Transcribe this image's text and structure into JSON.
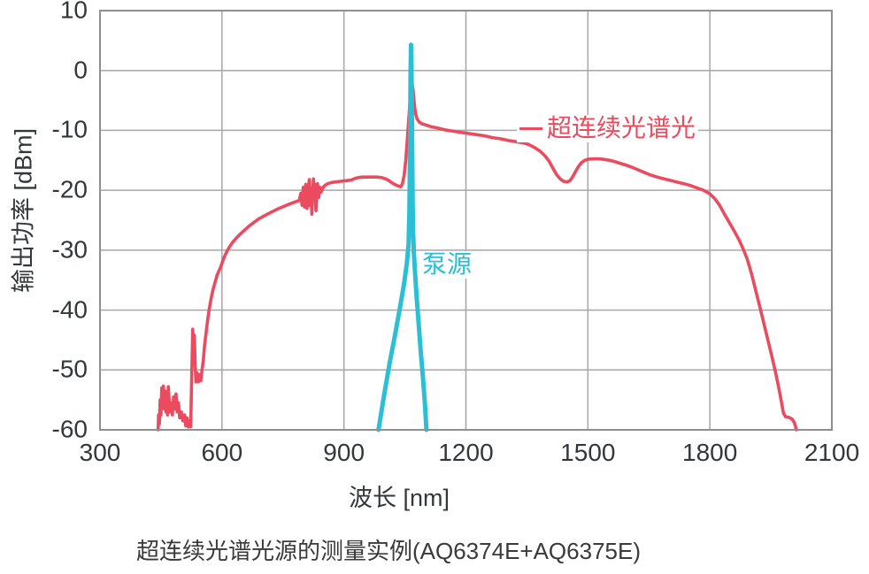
{
  "figure": {
    "caption": "超连续光谱光源的测量实例(AQ6374E+AQ6375E)"
  },
  "chart_data": {
    "type": "line",
    "title": "",
    "xlabel": "波长 [nm]",
    "ylabel": "输出功率 [dBm]",
    "xlim": [
      300,
      2100
    ],
    "ylim": [
      -60,
      10
    ],
    "xticks": [
      300,
      600,
      900,
      1200,
      1500,
      1800,
      2100
    ],
    "yticks": [
      10,
      0,
      -10,
      -20,
      -30,
      -40,
      -50,
      -60
    ],
    "grid": true,
    "grid_color": "#a6a6a6",
    "frame_color": "#8f8f8f",
    "legend_position": "inline-annotations",
    "annotations": [
      {
        "id": "supercontinuum",
        "text": "超连续光谱光",
        "color": "#ea4b5e",
        "x": 1400,
        "y": -9.5,
        "leader_dash": true
      },
      {
        "id": "pump",
        "text": "泵源",
        "color": "#2bbfd5",
        "x": 1095,
        "y": -31,
        "leader_dash": false
      }
    ],
    "series": [
      {
        "name": "超连续光谱光",
        "color": "#ea4b5e",
        "stroke_width": 3.6,
        "points": [
          [
            443,
            -60
          ],
          [
            444,
            -57.5
          ],
          [
            446,
            -59
          ],
          [
            448,
            -55
          ],
          [
            450,
            -57.5
          ],
          [
            452,
            -53
          ],
          [
            454,
            -56
          ],
          [
            456,
            -52.7
          ],
          [
            458,
            -56.5
          ],
          [
            460,
            -53.5
          ],
          [
            462,
            -57
          ],
          [
            464,
            -54.5
          ],
          [
            466,
            -57.5
          ],
          [
            468,
            -52.8
          ],
          [
            470,
            -55
          ],
          [
            472,
            -57
          ],
          [
            475,
            -55.5
          ],
          [
            478,
            -57.5
          ],
          [
            481,
            -54.5
          ],
          [
            484,
            -56.5
          ],
          [
            487,
            -54
          ],
          [
            490,
            -57
          ],
          [
            493,
            -55.5
          ],
          [
            496,
            -58
          ],
          [
            500,
            -57
          ],
          [
            504,
            -58.5
          ],
          [
            508,
            -57.5
          ],
          [
            511,
            -59.3
          ],
          [
            514,
            -58
          ],
          [
            517,
            -59.5
          ],
          [
            520,
            -58.5
          ],
          [
            523,
            -59.5
          ],
          [
            526,
            -50
          ],
          [
            528,
            -43.2
          ],
          [
            530,
            -46
          ],
          [
            532,
            -44.2
          ],
          [
            534,
            -49
          ],
          [
            536,
            -52
          ],
          [
            539,
            -50.5
          ],
          [
            542,
            -52
          ],
          [
            545,
            -50.8
          ],
          [
            548,
            -51.8
          ],
          [
            551,
            -50
          ],
          [
            554,
            -48.5
          ],
          [
            557,
            -46
          ],
          [
            561,
            -43.8
          ],
          [
            565,
            -41.5
          ],
          [
            569,
            -39.7
          ],
          [
            573,
            -38.2
          ],
          [
            578,
            -36.6
          ],
          [
            583,
            -35.4
          ],
          [
            588,
            -34.2
          ],
          [
            592,
            -33.5
          ],
          [
            597,
            -32.8
          ],
          [
            603,
            -31.6
          ],
          [
            610,
            -30.5
          ],
          [
            618,
            -29.5
          ],
          [
            626,
            -28.7
          ],
          [
            635,
            -28
          ],
          [
            645,
            -27.3
          ],
          [
            655,
            -26.7
          ],
          [
            666,
            -26
          ],
          [
            678,
            -25.4
          ],
          [
            690,
            -24.8
          ],
          [
            702,
            -24.35
          ],
          [
            714,
            -23.9
          ],
          [
            726,
            -23.5
          ],
          [
            738,
            -23.1
          ],
          [
            750,
            -22.75
          ],
          [
            762,
            -22.4
          ],
          [
            772,
            -22.15
          ],
          [
            782,
            -21.9
          ],
          [
            790,
            -21.7
          ],
          [
            794,
            -20.5
          ],
          [
            797,
            -22.5
          ],
          [
            800,
            -19.5
          ],
          [
            803,
            -22.8
          ],
          [
            806,
            -19
          ],
          [
            809,
            -23
          ],
          [
            812,
            -19.8
          ],
          [
            815,
            -18.2
          ],
          [
            817,
            -22.6
          ],
          [
            819,
            -19.6
          ],
          [
            821,
            -24
          ],
          [
            823,
            -20.5
          ],
          [
            825,
            -18.1
          ],
          [
            827,
            -21.5
          ],
          [
            829,
            -19
          ],
          [
            831,
            -23.4
          ],
          [
            833,
            -20.9
          ],
          [
            835,
            -18.9
          ],
          [
            838,
            -21.2
          ],
          [
            841,
            -19.5
          ],
          [
            844,
            -20.3
          ],
          [
            848,
            -19.6
          ],
          [
            853,
            -19.2
          ],
          [
            860,
            -18.9
          ],
          [
            870,
            -18.7
          ],
          [
            880,
            -18.6
          ],
          [
            892,
            -18.5
          ],
          [
            905,
            -18.4
          ],
          [
            918,
            -18.3
          ],
          [
            928,
            -18
          ],
          [
            935,
            -17.9
          ],
          [
            945,
            -17.8
          ],
          [
            958,
            -17.8
          ],
          [
            970,
            -17.8
          ],
          [
            982,
            -17.8
          ],
          [
            994,
            -17.9
          ],
          [
            1003,
            -18.1
          ],
          [
            1011,
            -18.4
          ],
          [
            1019,
            -18.8
          ],
          [
            1027,
            -19.1
          ],
          [
            1034,
            -19.3
          ],
          [
            1040,
            -19.4
          ],
          [
            1044,
            -18.9
          ],
          [
            1048,
            -17.5
          ],
          [
            1052,
            -15
          ],
          [
            1056,
            -11.5
          ],
          [
            1060,
            -7.5
          ],
          [
            1064,
            -4
          ],
          [
            1068,
            -2.4
          ],
          [
            1070,
            -3.2
          ],
          [
            1072,
            -4.8
          ],
          [
            1074,
            -6.2
          ],
          [
            1077,
            -7.4
          ],
          [
            1080,
            -8.1
          ],
          [
            1085,
            -8.6
          ],
          [
            1092,
            -8.9
          ],
          [
            1102,
            -9.1
          ],
          [
            1115,
            -9.4
          ],
          [
            1130,
            -9.6
          ],
          [
            1148,
            -9.9
          ],
          [
            1166,
            -10.1
          ],
          [
            1185,
            -10.3
          ],
          [
            1205,
            -10.5
          ],
          [
            1225,
            -10.7
          ],
          [
            1245,
            -10.9
          ],
          [
            1265,
            -11.2
          ],
          [
            1285,
            -11.4
          ],
          [
            1305,
            -11.7
          ],
          [
            1325,
            -11.9
          ],
          [
            1342,
            -12.1
          ],
          [
            1356,
            -12.4
          ],
          [
            1370,
            -12.9
          ],
          [
            1383,
            -13.5
          ],
          [
            1395,
            -14.3
          ],
          [
            1405,
            -15.2
          ],
          [
            1414,
            -16.3
          ],
          [
            1423,
            -17.4
          ],
          [
            1432,
            -18.1
          ],
          [
            1440,
            -18.5
          ],
          [
            1449,
            -18.6
          ],
          [
            1456,
            -18.4
          ],
          [
            1463,
            -17.7
          ],
          [
            1470,
            -16.8
          ],
          [
            1477,
            -16
          ],
          [
            1484,
            -15.4
          ],
          [
            1492,
            -15
          ],
          [
            1502,
            -14.8
          ],
          [
            1515,
            -14.75
          ],
          [
            1528,
            -14.75
          ],
          [
            1541,
            -14.85
          ],
          [
            1554,
            -15
          ],
          [
            1568,
            -15.25
          ],
          [
            1582,
            -15.55
          ],
          [
            1596,
            -15.85
          ],
          [
            1610,
            -16.2
          ],
          [
            1624,
            -16.6
          ],
          [
            1638,
            -17
          ],
          [
            1652,
            -17.4
          ],
          [
            1666,
            -17.7
          ],
          [
            1682,
            -18
          ],
          [
            1700,
            -18.3
          ],
          [
            1718,
            -18.6
          ],
          [
            1736,
            -18.9
          ],
          [
            1752,
            -19.2
          ],
          [
            1768,
            -19.6
          ],
          [
            1784,
            -20
          ],
          [
            1800,
            -20.6
          ],
          [
            1812,
            -21.4
          ],
          [
            1824,
            -22.5
          ],
          [
            1836,
            -24
          ],
          [
            1848,
            -25.4
          ],
          [
            1860,
            -26.8
          ],
          [
            1872,
            -28.3
          ],
          [
            1882,
            -29.8
          ],
          [
            1892,
            -31.5
          ],
          [
            1902,
            -33.8
          ],
          [
            1912,
            -36.5
          ],
          [
            1922,
            -39.2
          ],
          [
            1932,
            -42
          ],
          [
            1942,
            -44.8
          ],
          [
            1952,
            -47.6
          ],
          [
            1961,
            -50.2
          ],
          [
            1969,
            -52.8
          ],
          [
            1976,
            -55.3
          ],
          [
            1981,
            -57.2
          ],
          [
            1986,
            -57.8
          ],
          [
            1994,
            -57.9
          ],
          [
            2002,
            -58.2
          ],
          [
            2008,
            -58.8
          ],
          [
            2013,
            -60
          ]
        ]
      },
      {
        "name": "泵源",
        "color": "#2bbfd5",
        "stroke_width": 5,
        "points": [
          [
            985,
            -60
          ],
          [
            998,
            -54.5
          ],
          [
            1012,
            -49
          ],
          [
            1026,
            -44
          ],
          [
            1038,
            -39.5
          ],
          [
            1048,
            -35.5
          ],
          [
            1055,
            -32
          ],
          [
            1059,
            -29
          ],
          [
            1061,
            -24
          ],
          [
            1062,
            -17
          ],
          [
            1063,
            -8
          ],
          [
            1064,
            0
          ],
          [
            1065,
            4.3
          ],
          [
            1066,
            2
          ],
          [
            1067,
            -7
          ],
          [
            1068,
            -15
          ],
          [
            1069,
            -22
          ],
          [
            1070,
            -27
          ],
          [
            1072,
            -30.5
          ],
          [
            1075,
            -34
          ],
          [
            1079,
            -38
          ],
          [
            1084,
            -42.5
          ],
          [
            1089,
            -47
          ],
          [
            1094,
            -51
          ],
          [
            1099,
            -55.5
          ],
          [
            1103,
            -60
          ]
        ]
      }
    ]
  }
}
